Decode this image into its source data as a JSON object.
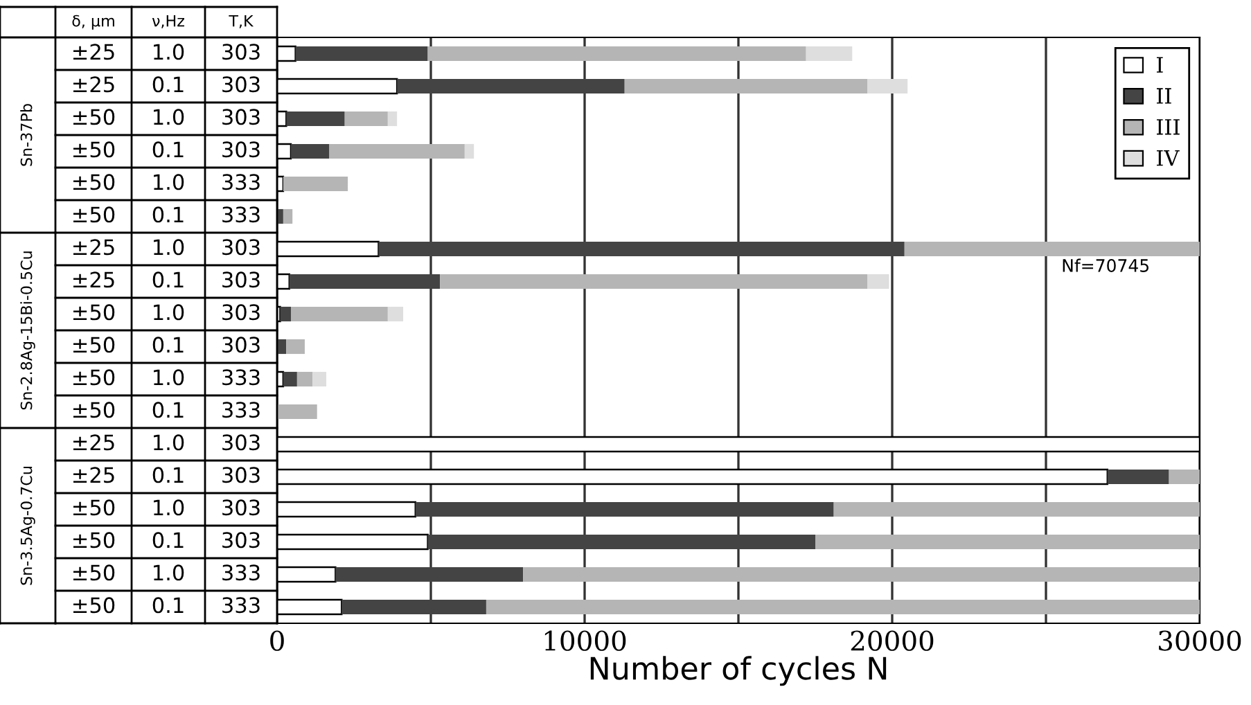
{
  "chart_data": {
    "type": "bar",
    "orientation": "horizontal",
    "stacked": true,
    "categories": [
      null,
      null,
      null,
      null,
      null,
      null,
      null,
      null,
      null,
      null,
      null,
      null,
      null,
      null,
      null,
      null,
      null,
      null
    ],
    "series": [
      {
        "name": "I",
        "color": "#ffffff",
        "values": [
          600,
          3900,
          300,
          450,
          200,
          null,
          3300,
          400,
          100,
          null,
          200,
          null,
          30000,
          27000,
          4500,
          4900,
          1900,
          2100
        ]
      },
      {
        "name": "II",
        "color": "#444444",
        "values": [
          4300,
          7400,
          1900,
          1250,
          null,
          200,
          17100,
          4900,
          350,
          300,
          450,
          null,
          null,
          2000,
          13600,
          12600,
          6100,
          4700
        ]
      },
      {
        "name": "III",
        "color": "#b5b5b5",
        "values": [
          12300,
          7900,
          1400,
          4400,
          2100,
          300,
          9600,
          13900,
          3150,
          600,
          500,
          1300,
          null,
          1000,
          11900,
          12500,
          22000,
          23200
        ]
      },
      {
        "name": "IV",
        "color": "#dedede",
        "values": [
          1500,
          1300,
          300,
          300,
          null,
          null,
          null,
          700,
          500,
          null,
          450,
          null,
          null,
          null,
          null,
          null,
          null,
          null
        ]
      }
    ],
    "xlim": [
      0,
      30000
    ],
    "xticks": [
      0,
      {
        "value": 5000,
        "label": null
      },
      10000,
      {
        "value": 15000,
        "label": null
      },
      20000,
      {
        "value": 25000,
        "label": null
      },
      30000
    ],
    "xlabel": "Number of cycles N",
    "grid": "x",
    "legend": "top right",
    "tick_labels": "x",
    "annotations": [
      "Nf=70745",
      "δ, μm",
      "ν,Hz",
      "T,K",
      "Sn-37Pb",
      "Sn-2.8Ag-15Bi-0.5Cu",
      "Sn-3.5Ag-0.7Cu",
      "±25",
      "1.0",
      "303",
      "±25",
      "0.1",
      "303",
      "±50",
      "1.0",
      "303",
      "±50",
      "0.1",
      "303",
      "±50",
      "1.0",
      "333",
      "±50",
      "0.1",
      "333",
      "±25",
      "1.0",
      "303",
      "±25",
      "0.1",
      "303",
      "±50",
      "1.0",
      "303",
      "±50",
      "0.1",
      "303",
      "±50",
      "1.0",
      "333",
      "±50",
      "0.1",
      "333",
      "±25",
      "1.0",
      "303",
      "±25",
      "0.1",
      "303",
      "±50",
      "1.0",
      "303",
      "±50",
      "0.1",
      "303",
      "±50",
      "1.0",
      "333",
      "±50",
      "0.1",
      "333"
    ]
  }
}
